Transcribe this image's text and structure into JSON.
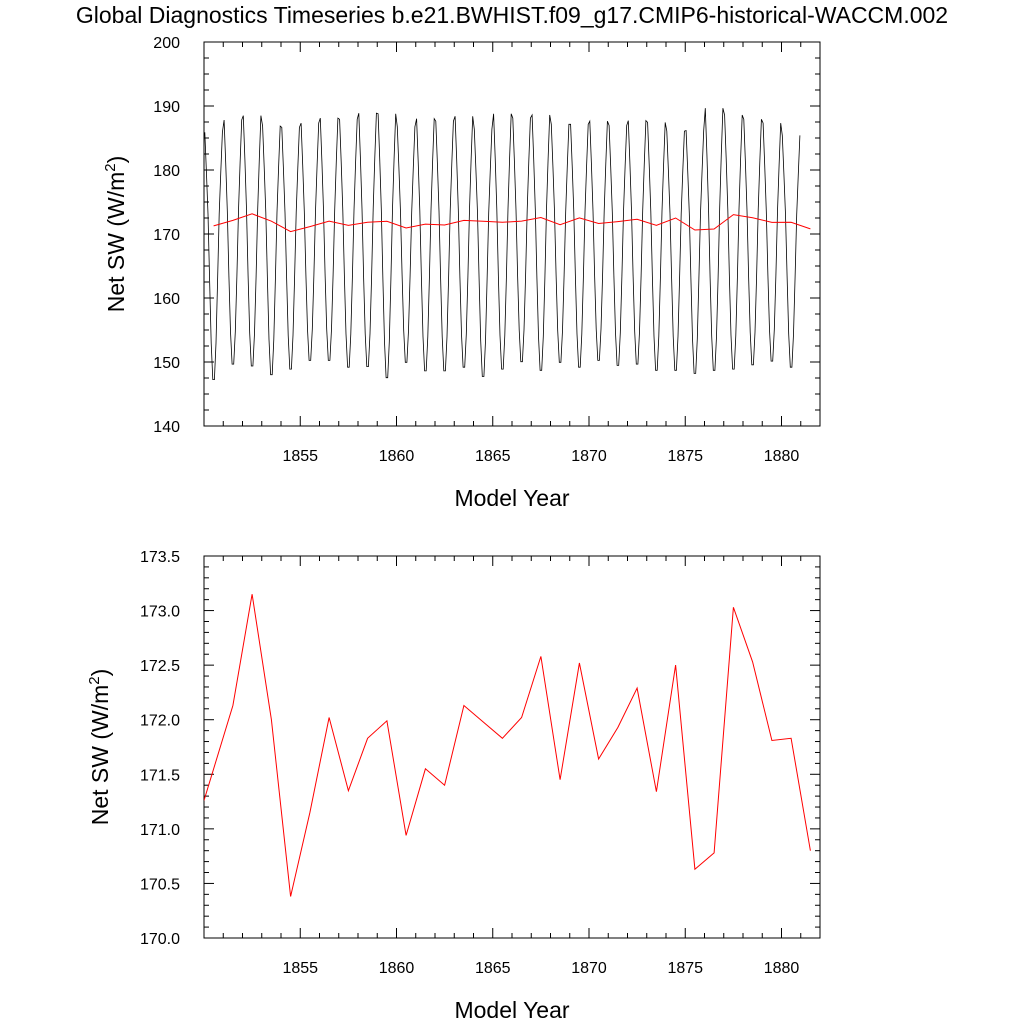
{
  "title": "Global Diagnostics Timeseries b.e21.BWHIST.f09_g17.CMIP6-historical-WACCM.002",
  "chart_data": [
    {
      "type": "line",
      "xlabel": "Model Year",
      "ylabel_main": "Net SW (W/m",
      "ylabel_sup": "2",
      "ylabel_close": ")",
      "xlim": [
        1850,
        1882
      ],
      "ylim": [
        140,
        200
      ],
      "x_ticks": [
        1855,
        1860,
        1865,
        1870,
        1875,
        1880
      ],
      "x_tick_labels": [
        "1855",
        "1860",
        "1865",
        "1870",
        "1875",
        "1880"
      ],
      "y_ticks": [
        140,
        150,
        160,
        170,
        180,
        190,
        200
      ],
      "y_tick_labels": [
        "140",
        "150",
        "160",
        "170",
        "180",
        "190",
        "200"
      ],
      "monthly": {
        "color": "#000000",
        "start_year": 1850,
        "end_year": 1881,
        "mean": 168.5,
        "amplitude": 20.5,
        "annual_peaks": [
          186.5,
          188.5,
          189.2,
          187.5,
          187.3,
          188.0,
          188.8,
          188.6,
          189.6,
          189.5,
          187.4,
          188.7,
          188.3,
          189.1,
          187.0,
          189.5,
          188.8,
          189.3,
          187.8,
          187.8,
          188.3,
          187.6,
          188.4,
          188.1,
          186.7,
          186.8,
          190.4,
          189.3,
          188.6,
          188.0,
          186.0
        ],
        "annual_troughs": [
          146.5,
          149.0,
          148.7,
          147.3,
          148.2,
          149.6,
          149.6,
          148.5,
          148.6,
          146.8,
          149.3,
          147.9,
          147.9,
          148.5,
          147.0,
          148.2,
          149.4,
          148.0,
          149.3,
          148.5,
          149.6,
          148.8,
          149.0,
          148.0,
          148.0,
          147.5,
          148.0,
          148.2,
          148.9,
          149.5,
          148.5
        ]
      },
      "series": [
        {
          "color": "#ff0000",
          "x": [
            1850.5,
            1851.5,
            1852.5,
            1853.5,
            1854.5,
            1855.5,
            1856.5,
            1857.5,
            1858.5,
            1859.5,
            1860.5,
            1861.5,
            1862.5,
            1863.5,
            1864.5,
            1865.5,
            1866.5,
            1867.5,
            1868.5,
            1869.5,
            1870.5,
            1871.5,
            1872.5,
            1873.5,
            1874.5,
            1875.5,
            1876.5,
            1877.5,
            1878.5,
            1879.5,
            1880.5,
            1881.5
          ],
          "values": [
            171.26,
            172.13,
            173.15,
            172.0,
            170.38,
            171.15,
            172.02,
            171.35,
            171.83,
            171.99,
            170.94,
            171.55,
            171.4,
            172.13,
            171.98,
            171.83,
            172.02,
            172.58,
            171.45,
            172.52,
            171.64,
            171.93,
            172.29,
            171.34,
            172.5,
            170.63,
            170.78,
            173.03,
            172.53,
            171.81,
            171.83,
            170.8
          ]
        }
      ]
    },
    {
      "type": "line",
      "xlabel": "Model Year",
      "ylabel_main": "Net SW (W/m",
      "ylabel_sup": "2",
      "ylabel_close": ")",
      "xlim": [
        1850,
        1882
      ],
      "ylim": [
        170.0,
        173.5
      ],
      "x_ticks": [
        1855,
        1860,
        1865,
        1870,
        1875,
        1880
      ],
      "x_tick_labels": [
        "1855",
        "1860",
        "1865",
        "1870",
        "1875",
        "1880"
      ],
      "y_ticks": [
        170.0,
        170.5,
        171.0,
        171.5,
        172.0,
        172.5,
        173.0,
        173.5
      ],
      "y_tick_labels": [
        "170.0",
        "170.5",
        "171.0",
        "171.5",
        "172.0",
        "172.5",
        "173.0",
        "173.5"
      ],
      "series": [
        {
          "color": "#ff0000",
          "x": [
            1850.0,
            1851.5,
            1852.5,
            1853.5,
            1854.5,
            1855.5,
            1856.5,
            1857.5,
            1858.5,
            1859.5,
            1860.5,
            1861.5,
            1862.5,
            1863.5,
            1864.5,
            1865.5,
            1866.5,
            1867.5,
            1868.5,
            1869.5,
            1870.5,
            1871.5,
            1872.5,
            1873.5,
            1874.5,
            1875.5,
            1876.5,
            1877.5,
            1878.5,
            1879.5,
            1880.5,
            1881.5
          ],
          "values": [
            171.26,
            172.13,
            173.15,
            172.0,
            170.38,
            171.15,
            172.02,
            171.35,
            171.83,
            171.99,
            170.94,
            171.55,
            171.4,
            172.13,
            171.98,
            171.83,
            172.02,
            172.58,
            171.45,
            172.52,
            171.64,
            171.93,
            172.29,
            171.34,
            172.5,
            170.63,
            170.78,
            173.03,
            172.53,
            171.81,
            171.83,
            170.8
          ]
        }
      ]
    }
  ]
}
